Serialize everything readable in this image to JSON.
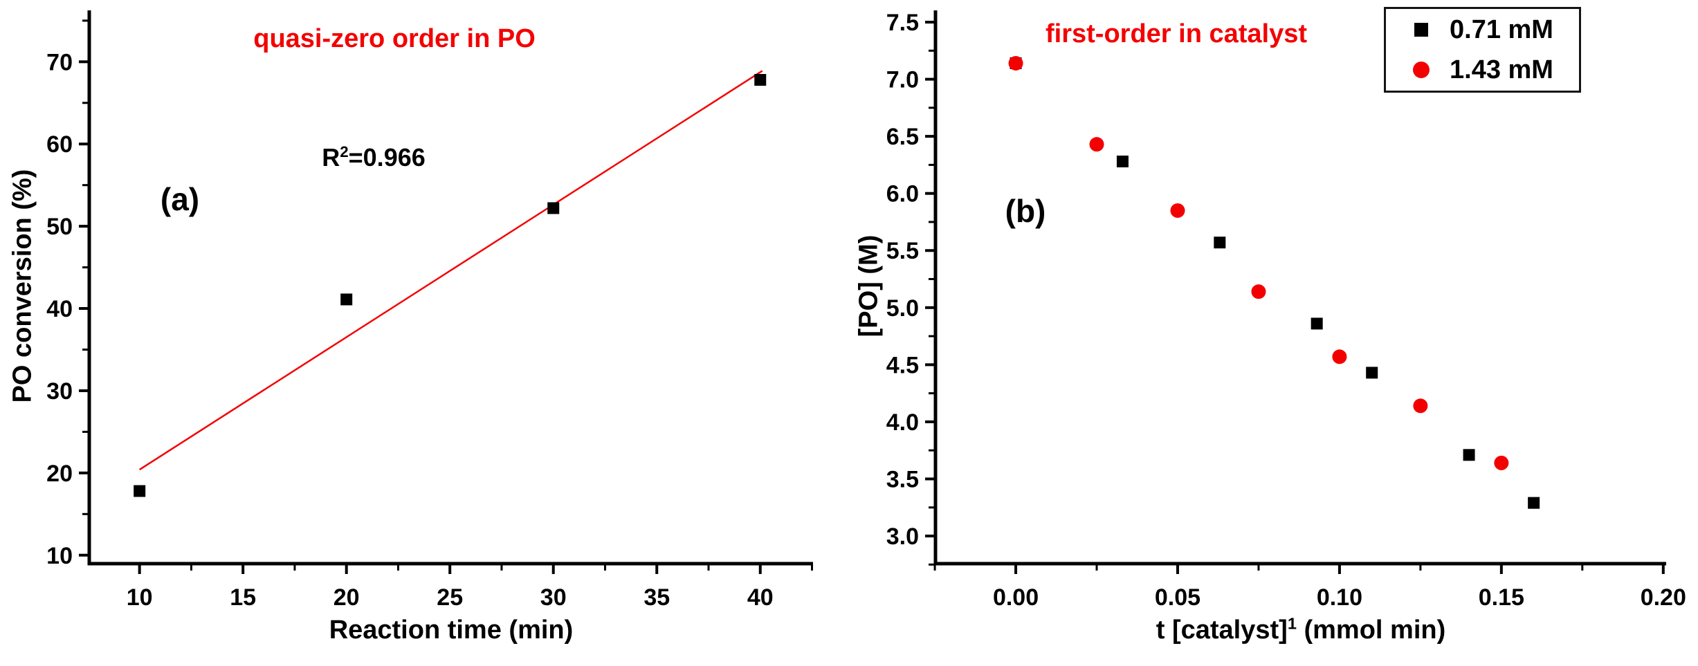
{
  "colors": {
    "red": "#f30000",
    "black": "#000000",
    "background": "#ffffff"
  },
  "chart_data": [
    {
      "id": "a",
      "type": "scatter",
      "panel_label": "(a)",
      "title": "quasi-zero order in PO",
      "annotation": {
        "pre": "R",
        "sup": "2",
        "post": "=0.966"
      },
      "xlabel": {
        "pre": "Reaction time (min)",
        "sup": "",
        "post": ""
      },
      "ylabel": "PO conversion (%)",
      "x_axis": {
        "min": 7.57,
        "max": 42.55,
        "major_ticks": [
          10,
          15,
          20,
          25,
          30,
          35,
          40
        ],
        "tick_labels": [
          "10",
          "15",
          "20",
          "25",
          "30",
          "35",
          "40"
        ],
        "minor_ticks": [
          12.5,
          17.5,
          22.5,
          27.5,
          32.5,
          37.5,
          42.5
        ]
      },
      "y_axis": {
        "min": 8.97,
        "max": 76.25,
        "major_ticks": [
          10,
          20,
          30,
          40,
          50,
          60,
          70
        ],
        "tick_labels": [
          "10",
          "20",
          "30",
          "40",
          "50",
          "60",
          "70"
        ],
        "minor_ticks": [
          15,
          25,
          35,
          45,
          55,
          65,
          75
        ]
      },
      "series": [
        {
          "name": "linear fit",
          "type": "line",
          "color": "#f30000",
          "points": [
            [
              10,
              20.4
            ],
            [
              40.1,
              68.9
            ]
          ]
        },
        {
          "name": "PO conversion data",
          "type": "scatter",
          "marker": "square",
          "color": "#000000",
          "points": [
            [
              10,
              17.8
            ],
            [
              20,
              41.1
            ],
            [
              30,
              52.2
            ],
            [
              40,
              67.8
            ]
          ]
        }
      ],
      "legend": null
    },
    {
      "id": "b",
      "type": "scatter",
      "panel_label": "(b)",
      "title": "first-order in catalyst",
      "annotation": null,
      "xlabel": {
        "pre": "t [catalyst]",
        "sup": "1",
        "post": " (mmol min)"
      },
      "ylabel": "[PO] (M)",
      "x_axis": {
        "min": -0.0248,
        "max": 0.2009,
        "major_ticks": [
          0.0,
          0.05,
          0.1,
          0.15,
          0.2
        ],
        "tick_labels": [
          "0.00",
          "0.05",
          "0.10",
          "0.15",
          "0.20"
        ],
        "minor_ticks": [
          -0.025,
          0.025,
          0.075,
          0.125,
          0.175
        ]
      },
      "y_axis": {
        "min": 2.758,
        "max": 7.603,
        "major_ticks": [
          3.0,
          3.5,
          4.0,
          4.5,
          5.0,
          5.5,
          6.0,
          6.5,
          7.0,
          7.5
        ],
        "tick_labels": [
          "3.0",
          "3.5",
          "4.0",
          "4.5",
          "5.0",
          "5.5",
          "6.0",
          "6.5",
          "7.0",
          "7.5"
        ],
        "minor_ticks": [
          2.75,
          3.25,
          3.75,
          4.25,
          4.75,
          5.25,
          5.75,
          6.25,
          6.75,
          7.25
        ]
      },
      "series": [
        {
          "name": "0.71 mM",
          "type": "scatter",
          "marker": "square",
          "color": "#000000",
          "points": [
            [
              0.0,
              7.14
            ],
            [
              0.033,
              6.28
            ],
            [
              0.063,
              5.57
            ],
            [
              0.093,
              4.86
            ],
            [
              0.11,
              4.43
            ],
            [
              0.14,
              3.71
            ],
            [
              0.16,
              3.29
            ]
          ]
        },
        {
          "name": "1.43 mM",
          "type": "scatter",
          "marker": "circle",
          "color": "#f30000",
          "points": [
            [
              0.0,
              7.14
            ],
            [
              0.025,
              6.43
            ],
            [
              0.05,
              5.85
            ],
            [
              0.075,
              5.14
            ],
            [
              0.1,
              4.57
            ],
            [
              0.125,
              4.14
            ],
            [
              0.15,
              3.64
            ]
          ]
        }
      ],
      "legend": {
        "items": [
          {
            "marker": "square",
            "color": "#000000",
            "label": "0.71 mM"
          },
          {
            "marker": "circle",
            "color": "#f30000",
            "label": "1.43 mM"
          }
        ]
      }
    }
  ]
}
